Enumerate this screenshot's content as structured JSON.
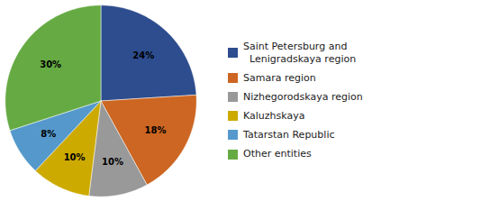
{
  "chart_data": {
    "type": "pie",
    "categories": [
      "Saint Petersburg and\n  Lenigradskaya region",
      "Samara region",
      "Nizhegorodskaya region",
      "Kaluzhskaya",
      "Tatarstan Republic",
      "Other entities"
    ],
    "values": [
      24,
      18,
      10,
      10,
      8,
      30
    ],
    "value_labels": [
      "24%",
      "18%",
      "10%",
      "10%",
      "8%",
      "30%"
    ],
    "colors": [
      "#2e4d8e",
      "#cc6622",
      "#999999",
      "#ccaa00",
      "#5599cc",
      "#66aa44"
    ],
    "data_labels": true,
    "legend": "right"
  }
}
